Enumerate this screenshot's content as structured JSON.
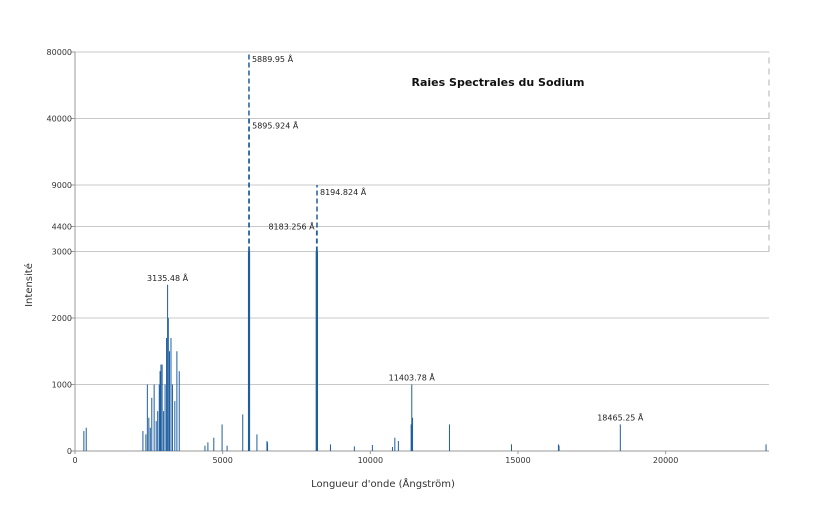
{
  "chart_data": {
    "type": "bar",
    "title": "Raies Spectrales du Sodium",
    "xlabel": "Longueur d'onde (Ångström)",
    "ylabel": "Intensité",
    "xlim": [
      0,
      23500
    ],
    "x_ticks": [
      0,
      5000,
      10000,
      15000,
      20000
    ],
    "y_ticks": [
      0,
      1000,
      2000,
      3000,
      4400,
      9000,
      40000,
      80000
    ],
    "y_tick_labels": [
      "0",
      "1000",
      "2000",
      "3000",
      "4400",
      "9000",
      "40000",
      "80000"
    ],
    "y_scale": "piecewise (broken axis)",
    "grid": true,
    "series": [
      {
        "color": "#1f5f9f",
        "lines": [
          {
            "x": 300,
            "y": 300
          },
          {
            "x": 380,
            "y": 350
          },
          {
            "x": 2300,
            "y": 300
          },
          {
            "x": 2400,
            "y": 250
          },
          {
            "x": 2450,
            "y": 1000
          },
          {
            "x": 2500,
            "y": 500
          },
          {
            "x": 2550,
            "y": 350
          },
          {
            "x": 2600,
            "y": 800
          },
          {
            "x": 2680,
            "y": 1000
          },
          {
            "x": 2750,
            "y": 450
          },
          {
            "x": 2800,
            "y": 600
          },
          {
            "x": 2853,
            "y": 1000
          },
          {
            "x": 2880,
            "y": 1200
          },
          {
            "x": 2910,
            "y": 1300
          },
          {
            "x": 2950,
            "y": 1300
          },
          {
            "x": 3000,
            "y": 600
          },
          {
            "x": 3050,
            "y": 1000
          },
          {
            "x": 3100,
            "y": 1700
          },
          {
            "x": 3135.48,
            "y": 2500
          },
          {
            "x": 3160,
            "y": 2000
          },
          {
            "x": 3200,
            "y": 1500
          },
          {
            "x": 3250,
            "y": 1700
          },
          {
            "x": 3300,
            "y": 1000
          },
          {
            "x": 3380,
            "y": 750
          },
          {
            "x": 3450,
            "y": 1500
          },
          {
            "x": 3530,
            "y": 1200
          },
          {
            "x": 4400,
            "y": 80
          },
          {
            "x": 4500,
            "y": 130
          },
          {
            "x": 4700,
            "y": 200
          },
          {
            "x": 4980,
            "y": 400
          },
          {
            "x": 5150,
            "y": 80
          },
          {
            "x": 5680,
            "y": 550
          },
          {
            "x": 5889.95,
            "y": 80000
          },
          {
            "x": 5895.924,
            "y": 40000
          },
          {
            "x": 6160,
            "y": 250
          },
          {
            "x": 6500,
            "y": 150
          },
          {
            "x": 6520,
            "y": 130
          },
          {
            "x": 8183.256,
            "y": 4400
          },
          {
            "x": 8194.824,
            "y": 9000
          },
          {
            "x": 8650,
            "y": 100
          },
          {
            "x": 9460,
            "y": 70
          },
          {
            "x": 10070,
            "y": 90
          },
          {
            "x": 10750,
            "y": 60
          },
          {
            "x": 10830,
            "y": 200
          },
          {
            "x": 10950,
            "y": 150
          },
          {
            "x": 11382,
            "y": 400
          },
          {
            "x": 11403.78,
            "y": 1000
          },
          {
            "x": 11430,
            "y": 500
          },
          {
            "x": 12680,
            "y": 400
          },
          {
            "x": 14780,
            "y": 100
          },
          {
            "x": 16370,
            "y": 100
          },
          {
            "x": 16390,
            "y": 80
          },
          {
            "x": 18465.25,
            "y": 400
          },
          {
            "x": 23400,
            "y": 100
          }
        ]
      }
    ],
    "annotations": [
      {
        "text": "5889.95 Å",
        "x": 5889.95,
        "y": 80000,
        "anchor": "right"
      },
      {
        "text": "5895.924 Å",
        "x": 5895.924,
        "y": 40000,
        "anchor": "right"
      },
      {
        "text": "8194.824 Å",
        "x": 8194.824,
        "y": 9000,
        "anchor": "right"
      },
      {
        "text": "8183.256 Å",
        "x": 8183.256,
        "y": 4400,
        "anchor": "left"
      },
      {
        "text": "3135.48 Å",
        "x": 3135.48,
        "y": 2500,
        "anchor": "above"
      },
      {
        "text": "11403.78 Å",
        "x": 11403.78,
        "y": 1000,
        "anchor": "above"
      },
      {
        "text": "18465.25 Å",
        "x": 18465.25,
        "y": 400,
        "anchor": "above"
      }
    ]
  }
}
